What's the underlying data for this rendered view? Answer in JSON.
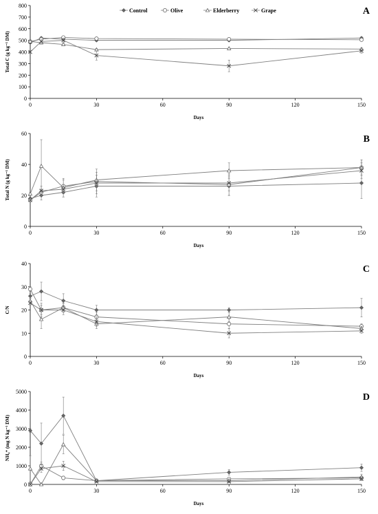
{
  "legend": [
    {
      "name": "Control",
      "marker": "diamond"
    },
    {
      "name": "Olive",
      "marker": "circle"
    },
    {
      "name": "Elderberry",
      "marker": "triangle"
    },
    {
      "name": "Grape",
      "marker": "cross"
    }
  ],
  "colors": {
    "line": "#7f7f7f",
    "axis": "#000000",
    "marker_edge": "#555555"
  },
  "chart_data": [
    {
      "type": "line",
      "panel_letter": "A",
      "xlabel": "Days",
      "ylabel": "Total C (g kg⁻¹ DM)",
      "x": [
        0,
        5,
        15,
        30,
        90,
        150
      ],
      "xlim": [
        0,
        150
      ],
      "xticks": [
        0,
        30,
        60,
        90,
        120,
        150
      ],
      "ylim": [
        0,
        800
      ],
      "yticks": [
        0,
        100,
        200,
        300,
        400,
        500,
        600,
        700,
        800
      ],
      "series": [
        {
          "name": "Control",
          "values": [
            480,
            520,
            510,
            500,
            500,
            520
          ],
          "errors": [
            10,
            10,
            10,
            10,
            10,
            10
          ]
        },
        {
          "name": "Olive",
          "values": [
            490,
            510,
            525,
            515,
            510,
            505
          ],
          "errors": [
            10,
            10,
            10,
            10,
            10,
            10
          ]
        },
        {
          "name": "Elderberry",
          "values": [
            490,
            480,
            465,
            420,
            430,
            425
          ],
          "errors": [
            10,
            10,
            10,
            10,
            10,
            10
          ]
        },
        {
          "name": "Grape",
          "values": [
            400,
            490,
            500,
            370,
            280,
            410
          ],
          "errors": [
            10,
            20,
            20,
            40,
            50,
            20
          ]
        }
      ]
    },
    {
      "type": "line",
      "panel_letter": "B",
      "xlabel": "Days",
      "ylabel": "Total N (g kg⁻¹ DM)",
      "x": [
        0,
        5,
        15,
        30,
        90,
        150
      ],
      "xlim": [
        0,
        150
      ],
      "xticks": [
        0,
        30,
        60,
        90,
        120,
        150
      ],
      "ylim": [
        0,
        60
      ],
      "yticks": [
        0,
        20,
        40,
        60
      ],
      "series": [
        {
          "name": "Control",
          "values": [
            18,
            20,
            22,
            26,
            26,
            28
          ],
          "errors": [
            1,
            3,
            3,
            7,
            6,
            10
          ]
        },
        {
          "name": "Olive",
          "values": [
            17,
            22,
            26,
            29,
            27,
            38
          ],
          "errors": [
            1,
            2,
            4,
            8,
            7,
            5
          ]
        },
        {
          "name": "Elderberry",
          "values": [
            21,
            39,
            25,
            30,
            36,
            38
          ],
          "errors": [
            1,
            17,
            6,
            5,
            5,
            5
          ]
        },
        {
          "name": "Grape",
          "values": [
            17,
            23,
            24,
            28,
            28,
            36
          ],
          "errors": [
            1,
            3,
            3,
            5,
            5,
            5
          ]
        }
      ]
    },
    {
      "type": "line",
      "panel_letter": "C",
      "xlabel": "Days",
      "ylabel": "C/N",
      "x": [
        0,
        5,
        15,
        30,
        90,
        150
      ],
      "xlim": [
        0,
        150
      ],
      "xticks": [
        0,
        30,
        60,
        90,
        120,
        150
      ],
      "ylim": [
        0,
        40
      ],
      "yticks": [
        0,
        10,
        20,
        30,
        40
      ],
      "series": [
        {
          "name": "Control",
          "values": [
            26,
            28,
            24,
            20,
            20,
            21
          ],
          "errors": [
            1,
            4,
            3,
            2,
            1,
            4
          ]
        },
        {
          "name": "Olive",
          "values": [
            29,
            20,
            21,
            17,
            14,
            13
          ],
          "errors": [
            1,
            3,
            2,
            2,
            2,
            1
          ]
        },
        {
          "name": "Elderberry",
          "values": [
            24,
            16,
            21,
            14,
            17,
            12
          ],
          "errors": [
            1,
            4,
            2,
            2,
            2,
            1
          ]
        },
        {
          "name": "Grape",
          "values": [
            23,
            20,
            20,
            15,
            10,
            11
          ],
          "errors": [
            1,
            2,
            2,
            2,
            2,
            1
          ]
        }
      ]
    },
    {
      "type": "line",
      "panel_letter": "D",
      "xlabel": "Days",
      "ylabel": "NH₄⁺ (mg N kg⁻¹ DM)",
      "x": [
        0,
        5,
        15,
        30,
        90,
        150
      ],
      "xlim": [
        0,
        150
      ],
      "xticks": [
        0,
        30,
        60,
        90,
        120,
        150
      ],
      "ylim": [
        0,
        5000
      ],
      "yticks": [
        0,
        1000,
        2000,
        3000,
        4000,
        5000
      ],
      "series": [
        {
          "name": "Control",
          "values": [
            2900,
            2200,
            3700,
            200,
            650,
            900
          ],
          "errors": [
            100,
            1100,
            1000,
            100,
            150,
            200
          ]
        },
        {
          "name": "Olive",
          "values": [
            0,
            1000,
            350,
            200,
            300,
            350
          ],
          "errors": [
            50,
            200,
            100,
            50,
            80,
            80
          ]
        },
        {
          "name": "Elderberry",
          "values": [
            850,
            0,
            2150,
            200,
            200,
            400
          ],
          "errors": [
            700,
            50,
            500,
            50,
            100,
            150
          ]
        },
        {
          "name": "Grape",
          "values": [
            0,
            850,
            1000,
            150,
            150,
            300
          ],
          "errors": [
            50,
            200,
            250,
            50,
            50,
            100
          ]
        }
      ]
    }
  ]
}
